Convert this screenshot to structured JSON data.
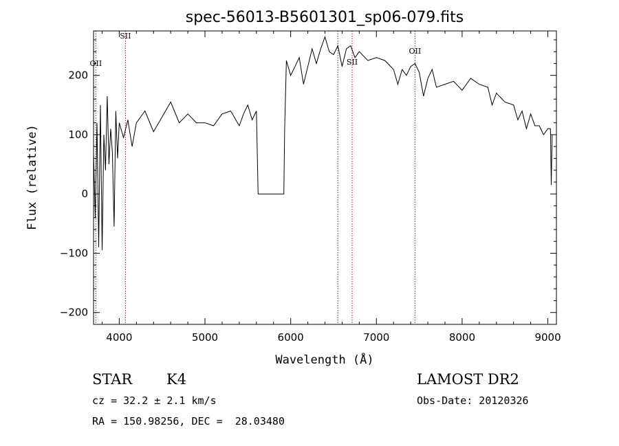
{
  "chart_data": {
    "type": "line",
    "title": "spec-56013-B5601301_sp06-079.fits",
    "xlabel": "Wavelength (Å)",
    "ylabel": "Flux (relative)",
    "xlim": [
      3700,
      9100
    ],
    "ylim": [
      -220,
      275
    ],
    "x_ticks": [
      4000,
      5000,
      6000,
      7000,
      8000,
      9000
    ],
    "y_ticks": [
      -200,
      -100,
      0,
      100,
      200
    ],
    "grid": false,
    "line_color": "#000000",
    "marker_color": "#8b1a1a",
    "series": [
      {
        "values_note": "",
        "x": [
          3700,
          3720,
          3740,
          3760,
          3780,
          3800,
          3820,
          3840,
          3860,
          3880,
          3900,
          3920,
          3940,
          3960,
          3980,
          4000,
          4050,
          4100,
          4150,
          4200,
          4300,
          4400,
          4500,
          4600,
          4700,
          4800,
          4900,
          5000,
          5100,
          5200,
          5300,
          5400,
          5450,
          5500,
          5550,
          5600,
          5620,
          5625,
          5900,
          5920,
          5930,
          5950,
          6000,
          6050,
          6100,
          6150,
          6200,
          6250,
          6300,
          6350,
          6400,
          6450,
          6500,
          6550,
          6600,
          6650,
          6700,
          6750,
          6800,
          6900,
          7000,
          7100,
          7200,
          7250,
          7300,
          7350,
          7400,
          7450,
          7500,
          7550,
          7600,
          7650,
          7700,
          7800,
          7900,
          8000,
          8100,
          8200,
          8300,
          8350,
          8400,
          8500,
          8600,
          8650,
          8700,
          8750,
          8800,
          8850,
          8900,
          8950,
          9000,
          9030,
          9040,
          9050
        ],
        "y": [
          70,
          -40,
          120,
          -90,
          150,
          -95,
          100,
          40,
          165,
          50,
          110,
          70,
          -55,
          140,
          60,
          120,
          95,
          125,
          80,
          120,
          140,
          105,
          130,
          155,
          120,
          135,
          120,
          120,
          115,
          135,
          140,
          115,
          135,
          150,
          125,
          140,
          0,
          0,
          0,
          0,
          110,
          225,
          200,
          215,
          230,
          185,
          215,
          245,
          220,
          245,
          265,
          240,
          235,
          250,
          215,
          245,
          250,
          230,
          240,
          225,
          230,
          225,
          210,
          185,
          210,
          200,
          215,
          220,
          205,
          165,
          195,
          210,
          180,
          185,
          190,
          175,
          195,
          185,
          180,
          150,
          170,
          155,
          150,
          125,
          140,
          110,
          135,
          115,
          115,
          100,
          110,
          110,
          15,
          100
        ]
      }
    ],
    "lines": [
      {
        "label": "OII",
        "wavelength": 3727,
        "label_flux": 216
      },
      {
        "label": "SII",
        "wavelength": 4072,
        "label_flux": 262
      },
      {
        "label": "",
        "wavelength": 6550,
        "label_flux": null
      },
      {
        "label": "SII",
        "wavelength": 6717,
        "label_flux": 218
      },
      {
        "label": "OII",
        "wavelength": 7450,
        "label_flux": 237
      }
    ]
  },
  "info": {
    "class": "STAR",
    "subclass": "K4",
    "survey": "LAMOST DR2",
    "cz": "cz = 32.2 ± 2.1 km/s",
    "obs_date": "Obs-Date: 20120326",
    "coords": "RA = 150.98256, DEC =  28.03480"
  }
}
